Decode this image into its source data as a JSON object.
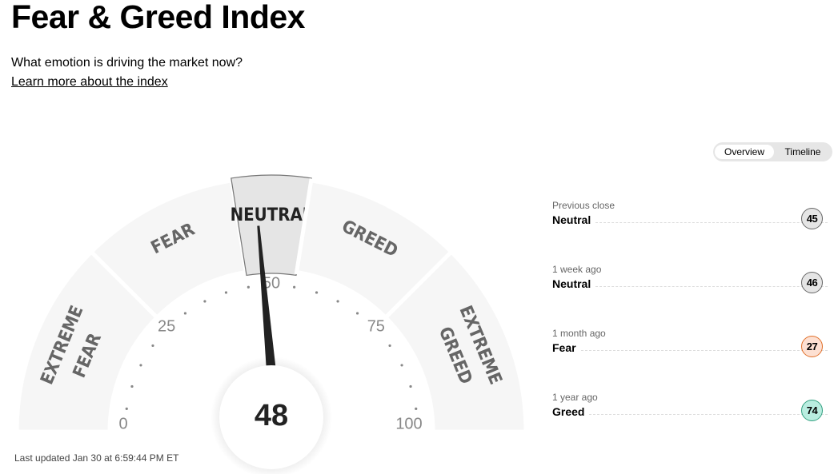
{
  "header": {
    "title": "Fear & Greed Index",
    "subtitle": "What emotion is driving the market now?",
    "learn_more": "Learn more about the index"
  },
  "tabs": [
    {
      "label": "Overview",
      "active": true
    },
    {
      "label": "Timeline",
      "active": false
    }
  ],
  "gauge": {
    "value": 48,
    "value_label": "48",
    "current_rating": "NEUTRAL",
    "segments": [
      {
        "label": "EXTREME FEAR",
        "lines": [
          "EXTREME",
          "FEAR"
        ],
        "from": 0,
        "to": 25
      },
      {
        "label": "FEAR",
        "lines": [
          "FEAR"
        ],
        "from": 25,
        "to": 45
      },
      {
        "label": "NEUTRAL",
        "lines": [
          "NEUTRAL"
        ],
        "from": 45,
        "to": 55
      },
      {
        "label": "GREED",
        "lines": [
          "GREED"
        ],
        "from": 55,
        "to": 75
      },
      {
        "label": "EXTREME GREED",
        "lines": [
          "EXTREME",
          "GREED"
        ],
        "from": 75,
        "to": 100
      }
    ],
    "ticks": [
      "0",
      "25",
      "50",
      "75",
      "100"
    ],
    "colors": {
      "segment": "#f6f6f6",
      "active": "#e5e5e5",
      "needle": "#222222"
    }
  },
  "history": [
    {
      "when": "Previous close",
      "rating": "Neutral",
      "value": "45",
      "color": "#e5e5e5",
      "border": "#666666"
    },
    {
      "when": "1 week ago",
      "rating": "Neutral",
      "value": "46",
      "color": "#e5e5e5",
      "border": "#666666"
    },
    {
      "when": "1 month ago",
      "rating": "Fear",
      "value": "27",
      "color": "#fde0d2",
      "border": "#e0702a"
    },
    {
      "when": "1 year ago",
      "rating": "Greed",
      "value": "74",
      "color": "#b9ede0",
      "border": "#33a080"
    }
  ],
  "last_updated": "Last updated Jan 30 at 6:59:44 PM ET"
}
